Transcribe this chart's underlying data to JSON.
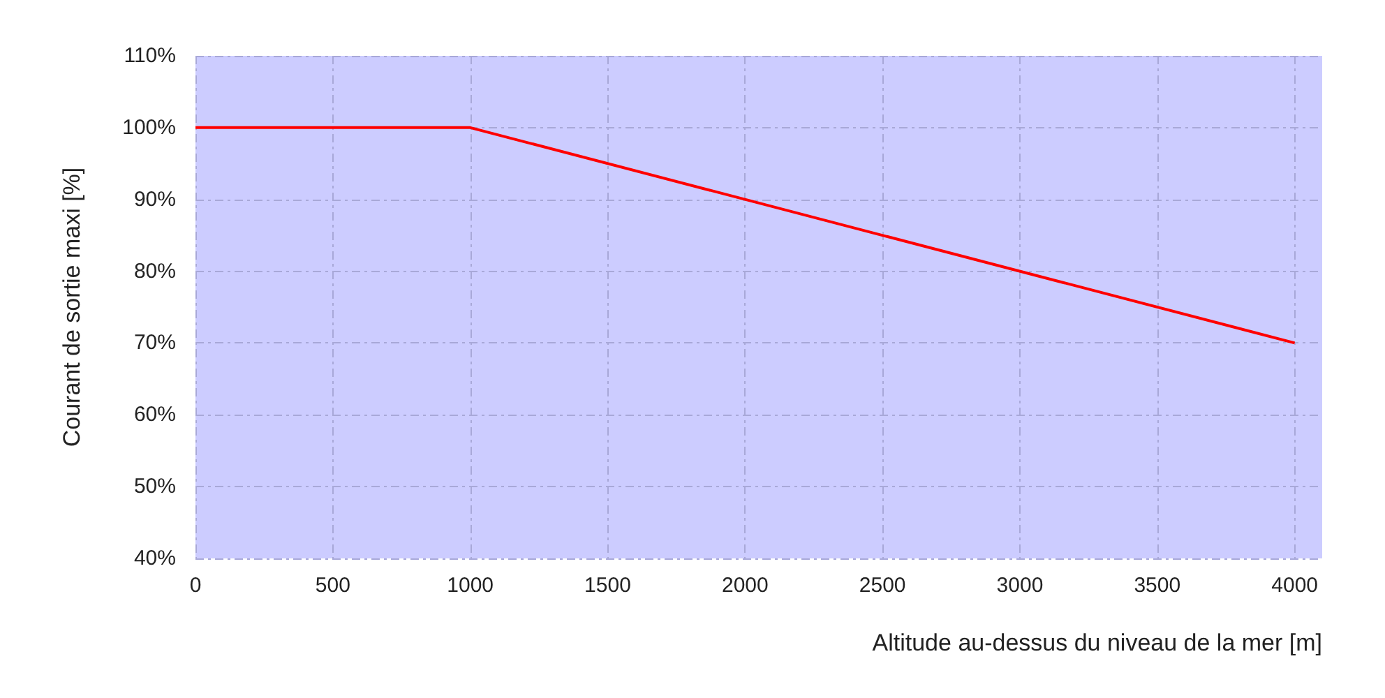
{
  "chart_data": {
    "type": "line",
    "xlabel": "Altitude au-dessus du niveau de la mer [m]",
    "ylabel": "Courant de sortie maxi [%]",
    "x": [
      0,
      1000,
      4000
    ],
    "series": [
      {
        "color": "#ff0000",
        "values": [
          100,
          100,
          70
        ]
      }
    ],
    "xlim": [
      0,
      4100
    ],
    "xticks": [
      0,
      500,
      1000,
      1500,
      2000,
      2500,
      3000,
      3500,
      4000
    ],
    "ylim": [
      40,
      110
    ],
    "yticks": [
      {
        "value": 40,
        "label": "40%"
      },
      {
        "value": 50,
        "label": "50%"
      },
      {
        "value": 60,
        "label": "60%"
      },
      {
        "value": 70,
        "label": "70%"
      },
      {
        "value": 80,
        "label": "80%"
      },
      {
        "value": 90,
        "label": "90%"
      },
      {
        "value": 100,
        "label": "100%"
      },
      {
        "value": 110,
        "label": "110%"
      }
    ],
    "grid": true,
    "marker": "none",
    "line_style": "solid"
  }
}
